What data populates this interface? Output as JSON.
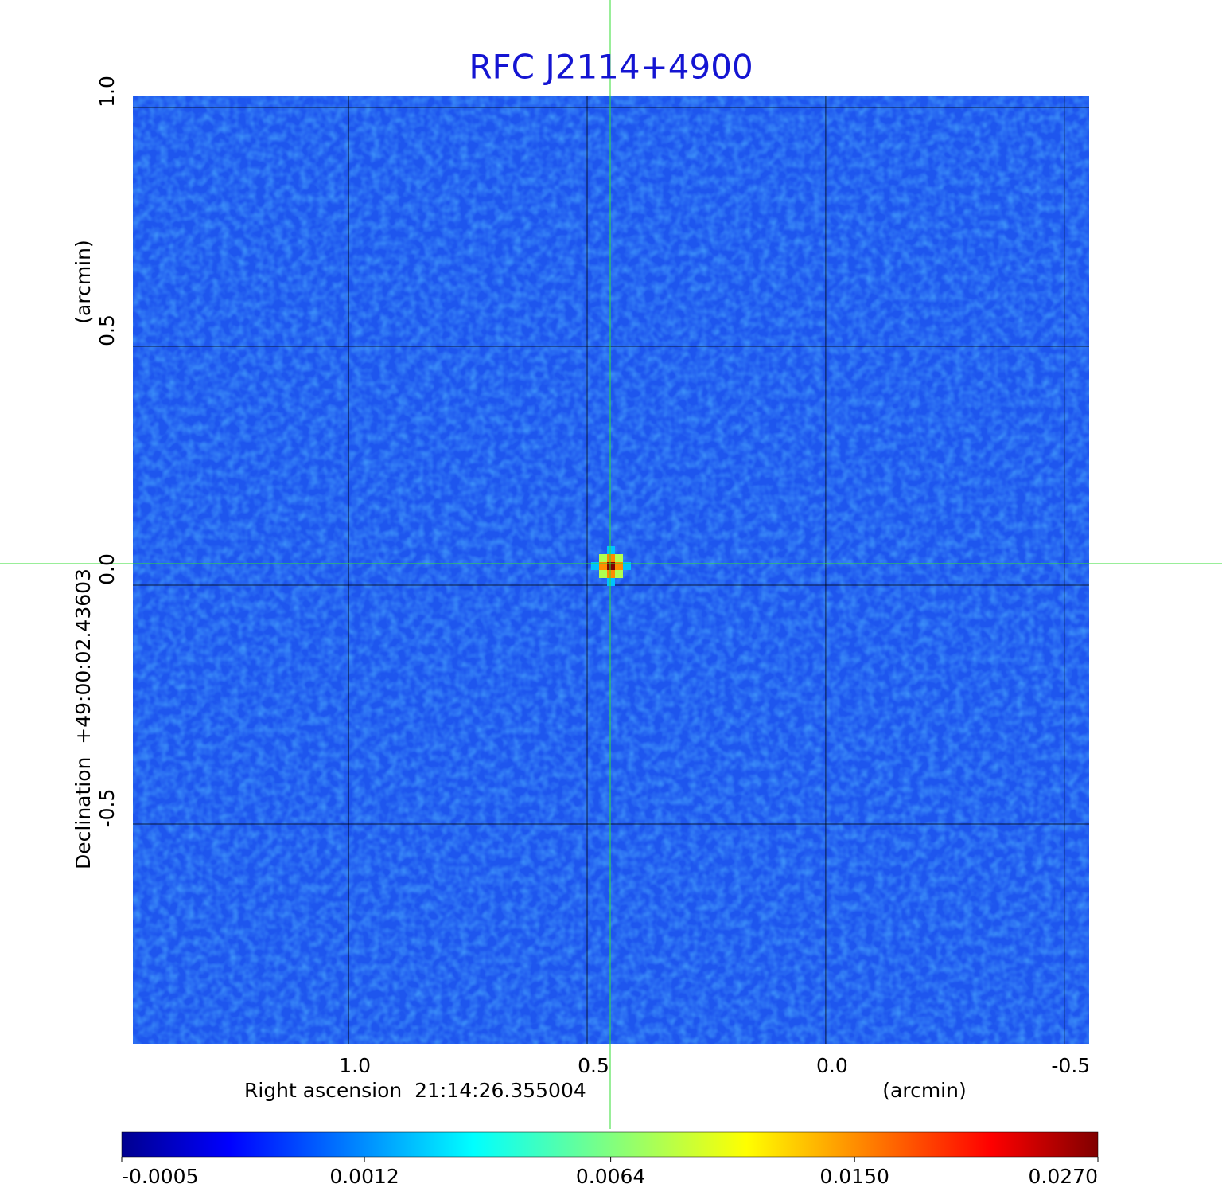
{
  "chart_data": {
    "type": "image",
    "title": "RFC J2114+4900",
    "x_label": "Right ascension  21:14:26.355004",
    "x_unit": "(arcmin)",
    "y_label": "Declination  +49:00:02.43603",
    "y_unit": "(arcmin)",
    "xlim": [
      1.452,
      -0.552
    ],
    "ylim": [
      -0.96,
      1.025
    ],
    "xticks": [
      {
        "value": 1,
        "label": "1.0"
      },
      0.5,
      {
        "value": 0,
        "label": "0.0"
      },
      -0.5
    ],
    "yticks": [
      {
        "value": 1,
        "label": "1.0"
      },
      0.5,
      {
        "value": 0,
        "label": "0.0"
      },
      -0.5
    ],
    "grid": true,
    "sources": [
      {
        "x": 0.45,
        "y": 0.04,
        "peak": 0.027
      }
    ],
    "colorbar": {
      "scale": "sqrt",
      "lim": [
        -0.0005,
        0.027
      ],
      "ticks": [
        -0.0005,
        0.0012,
        0.0064,
        {
          "value": 0.015,
          "label": "0.0150"
        },
        {
          "value": 0.027,
          "label": "0.0270"
        }
      ]
    }
  }
}
